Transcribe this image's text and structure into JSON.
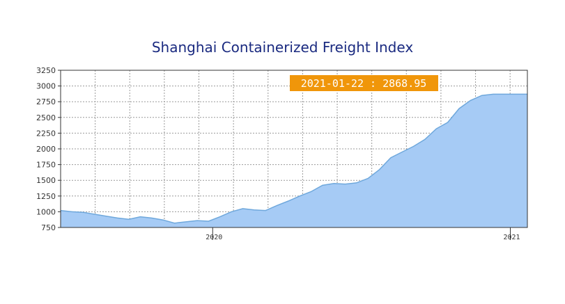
{
  "title": "Shanghai Containerized Freight Index",
  "tooltip": {
    "date": "2021-01-22",
    "separator": " : ",
    "value": "2868.95",
    "bg_color": "#f0960a"
  },
  "colors": {
    "fill": "#a6cbf5",
    "line": "#6fa8dc",
    "grid": "#999999",
    "axis": "#333333",
    "title": "#1a2a80"
  },
  "chart_data": {
    "type": "area",
    "title": "Shanghai Containerized Freight Index",
    "xlabel": "",
    "ylabel": "",
    "ylim": [
      750,
      3250
    ],
    "yticks": [
      750,
      1000,
      1250,
      1500,
      1750,
      2000,
      2250,
      2500,
      2750,
      3000,
      3250
    ],
    "xtick_labels": [
      "2020",
      "2021"
    ],
    "xlim": [
      "2019-06-28",
      "2021-01-22"
    ],
    "grid": true,
    "x": [
      "2019-06-28",
      "2019-07-12",
      "2019-07-26",
      "2019-08-09",
      "2019-08-23",
      "2019-09-06",
      "2019-09-20",
      "2019-10-04",
      "2019-10-18",
      "2019-11-01",
      "2019-11-15",
      "2019-11-29",
      "2019-12-13",
      "2019-12-27",
      "2020-01-10",
      "2020-01-24",
      "2020-02-07",
      "2020-02-21",
      "2020-03-06",
      "2020-03-20",
      "2020-04-03",
      "2020-04-17",
      "2020-05-01",
      "2020-05-15",
      "2020-05-29",
      "2020-06-12",
      "2020-06-26",
      "2020-07-10",
      "2020-07-24",
      "2020-08-07",
      "2020-08-21",
      "2020-09-04",
      "2020-09-18",
      "2020-10-02",
      "2020-10-16",
      "2020-10-30",
      "2020-11-13",
      "2020-11-27",
      "2020-12-11",
      "2020-12-25",
      "2021-01-08",
      "2021-01-22"
    ],
    "values": [
      1020,
      1000,
      990,
      960,
      930,
      900,
      880,
      920,
      900,
      870,
      820,
      840,
      860,
      850,
      920,
      1000,
      1050,
      1030,
      1020,
      1100,
      1170,
      1250,
      1320,
      1420,
      1450,
      1440,
      1460,
      1530,
      1670,
      1860,
      1950,
      2040,
      2150,
      2320,
      2420,
      2640,
      2770,
      2850,
      2870,
      2870,
      2870,
      2868.95
    ]
  }
}
